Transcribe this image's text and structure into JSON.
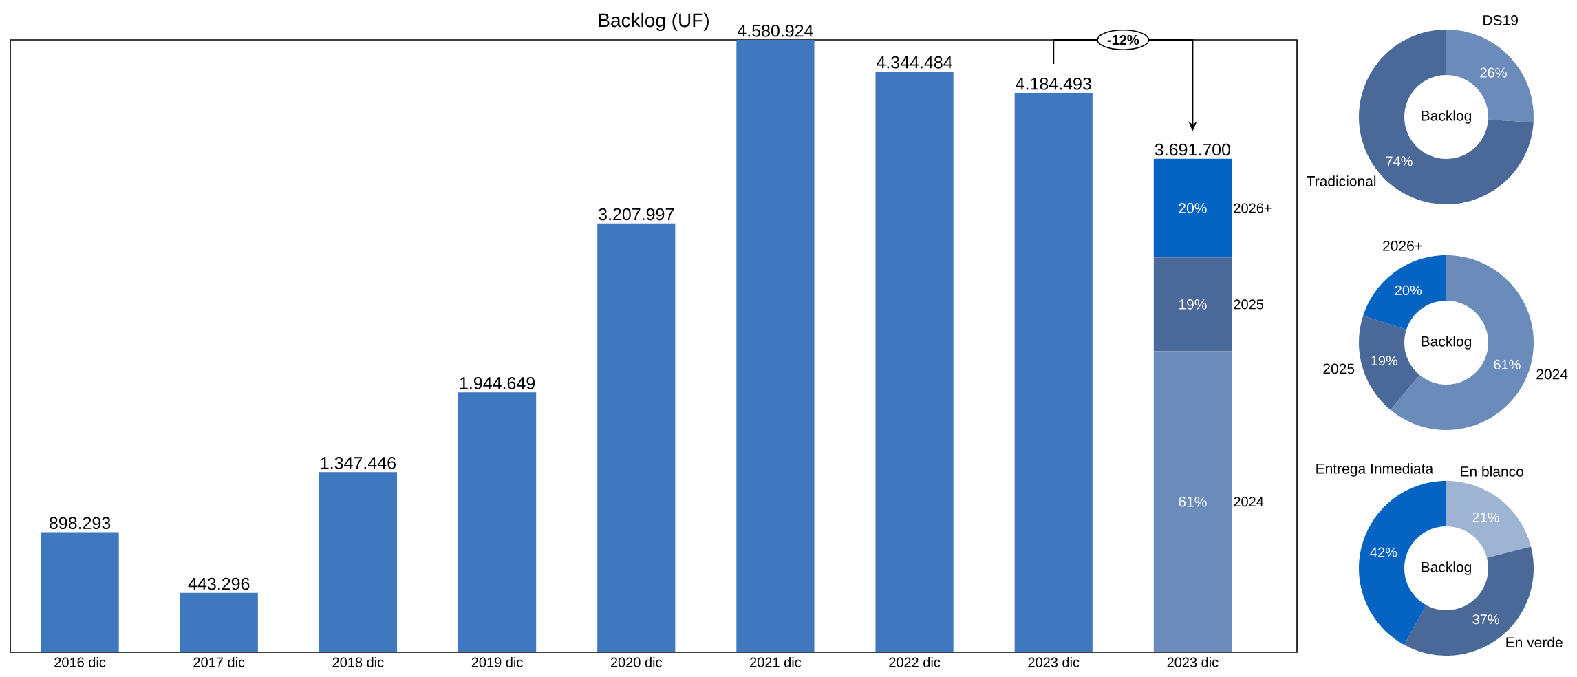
{
  "chart_data": [
    {
      "type": "bar",
      "title": "Backlog (UF)",
      "categories": [
        "2016 dic",
        "2017 dic",
        "2018 dic",
        "2019 dic",
        "2020 dic",
        "2021 dic",
        "2022 dic",
        "2023 dic",
        "2023 dic"
      ],
      "stacked": true,
      "series": [
        {
          "color": "#3f78bf",
          "values": [
            898293,
            443296,
            1347446,
            1944649,
            3207997,
            4580924,
            4344484,
            4184493,
            null
          ],
          "value_labels": [
            "898.293",
            "443.296",
            "1.347.446",
            "1.944.649",
            "3.207.997",
            "4.580.924",
            "4.344.484",
            "4.184.493",
            null
          ]
        },
        {
          "name": "2024",
          "color": "#6b8cba",
          "values": [
            null,
            null,
            null,
            null,
            null,
            null,
            null,
            null,
            2251937
          ]
        },
        {
          "name": "2025",
          "color": "#4a6898",
          "values": [
            null,
            null,
            null,
            null,
            null,
            null,
            null,
            null,
            701423
          ]
        },
        {
          "name": "2026+",
          "color": "#0563c1",
          "values": [
            null,
            null,
            null,
            null,
            null,
            null,
            null,
            null,
            738340
          ]
        }
      ],
      "totals": [
        null,
        null,
        null,
        null,
        null,
        null,
        null,
        null,
        "3.691.700"
      ],
      "annotations": [
        "-12%",
        "20%",
        "19%",
        "61%"
      ]
    },
    {
      "type": "donut",
      "title": "Backlog",
      "categories": [
        "DS19",
        "Tradicional"
      ],
      "values": [
        26,
        74
      ],
      "colors": [
        "#6b8cba",
        "#4a6898"
      ],
      "value_labels": [
        "26%",
        "74%"
      ]
    },
    {
      "type": "donut",
      "title": "Backlog",
      "categories": [
        "2024",
        "2025",
        "2026+"
      ],
      "values": [
        61,
        19,
        20
      ],
      "colors": [
        "#6b8cba",
        "#4a6898",
        "#0563c1"
      ],
      "value_labels": [
        "61%",
        "19%",
        "20%"
      ]
    },
    {
      "type": "donut",
      "title": "Backlog",
      "categories": [
        "En blanco",
        "En verde",
        "Entrega Inmediata"
      ],
      "values": [
        21,
        37,
        42
      ],
      "colors": [
        "#9fb3d3",
        "#4a6898",
        "#0563c1"
      ],
      "value_labels": [
        "21%",
        "37%",
        "42%"
      ]
    }
  ]
}
